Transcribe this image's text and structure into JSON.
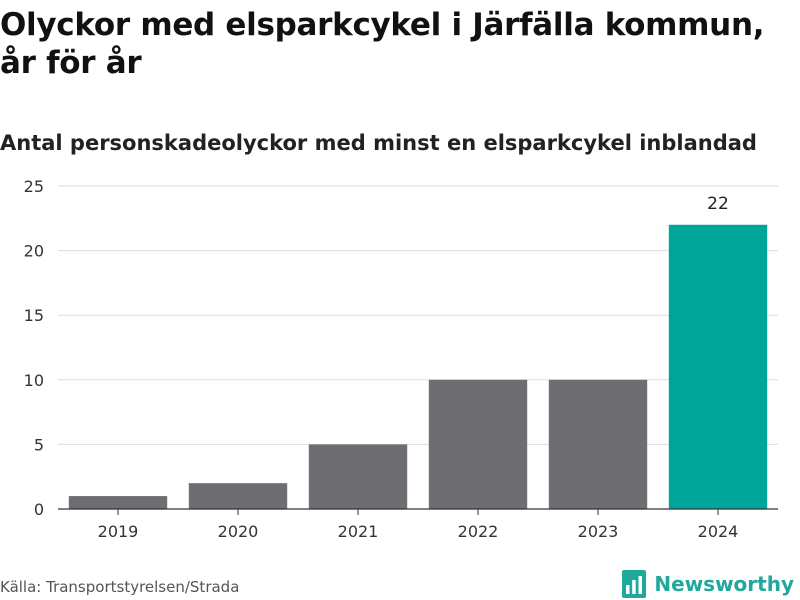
{
  "title": "Olyckor med elsparkcykel i Järfälla kommun, år för år",
  "subtitle": "Antal personskadeolyckor med minst en elsparkcykel inblandad",
  "source": "Källa: Transportstyrelsen/Strada",
  "brand": {
    "name": "Newsworthy",
    "icon": "bar-chart-logo-icon",
    "color": "#1fa89b"
  },
  "colors": {
    "bar": "#6e6d72",
    "highlight": "#00a59a",
    "grid": "#dddddd",
    "axis": "#333333"
  },
  "chart_data": {
    "type": "bar",
    "title": "Olyckor med elsparkcykel i Järfälla kommun, år för år",
    "subtitle": "Antal personskadeolyckor med minst en elsparkcykel inblandad",
    "categories": [
      "2019",
      "2020",
      "2021",
      "2022",
      "2023",
      "2024"
    ],
    "values": [
      1,
      2,
      5,
      10,
      10,
      22
    ],
    "highlight_index": 5,
    "data_labels": [
      null,
      null,
      null,
      null,
      null,
      "22"
    ],
    "ylim": [
      0,
      25
    ],
    "yticks": [
      0,
      5,
      10,
      15,
      20,
      25
    ],
    "grid": true,
    "xlabel": "",
    "ylabel": ""
  }
}
